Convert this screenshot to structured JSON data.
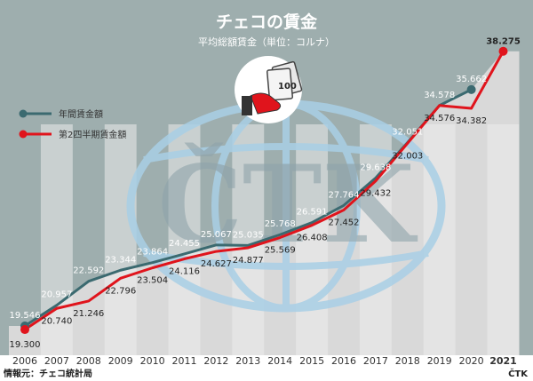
{
  "chart_data": {
    "type": "line",
    "title": "チェコの賃金",
    "subtitle": "平均総額賃金（単位：コルナ）",
    "x": [
      "2006",
      "2007",
      "2008",
      "2009",
      "2010",
      "2011",
      "2012",
      "2013",
      "2014",
      "2015",
      "2016",
      "2017",
      "2018",
      "2019",
      "2020",
      "2021"
    ],
    "series": [
      {
        "name": "年間賃金額",
        "color": "#3b6a70",
        "values": [
          19546,
          20957,
          22592,
          23344,
          23864,
          24455,
          25067,
          25035,
          25768,
          26591,
          27764,
          29638,
          32051,
          34578,
          35662,
          null
        ],
        "labels": [
          "19.546",
          "20.957",
          "22.592",
          "23.344",
          "23.864",
          "24.455",
          "25.067",
          "25.035",
          "25.768",
          "26.591",
          "27.764",
          "29.638",
          "32.051",
          "34.578",
          "35.662",
          ""
        ]
      },
      {
        "name": "第2四半期賃金額",
        "color": "#e0141c",
        "values": [
          19300,
          20740,
          21246,
          22796,
          23504,
          24116,
          24627,
          24877,
          25569,
          26408,
          27452,
          29432,
          32003,
          34576,
          34382,
          38275
        ],
        "labels": [
          "19.300",
          "20.740",
          "21.246",
          "22.796",
          "23.504",
          "24.116",
          "24.627",
          "24.877",
          "25.569",
          "26.408",
          "27.452",
          "29.432",
          "32.003",
          "34.576",
          "34.382",
          "38.275"
        ]
      }
    ],
    "legend_position": "left",
    "source": "情報元：チェコ統計局",
    "credit": "ČTK",
    "watermark_text": "ČTK"
  },
  "colors": {
    "header_bg": "#9eaeae",
    "area_fill": "#d9d9d9",
    "band": "#ececec",
    "globe": "#a9cfe6"
  },
  "icons": {
    "header": "wage-money-icon"
  }
}
